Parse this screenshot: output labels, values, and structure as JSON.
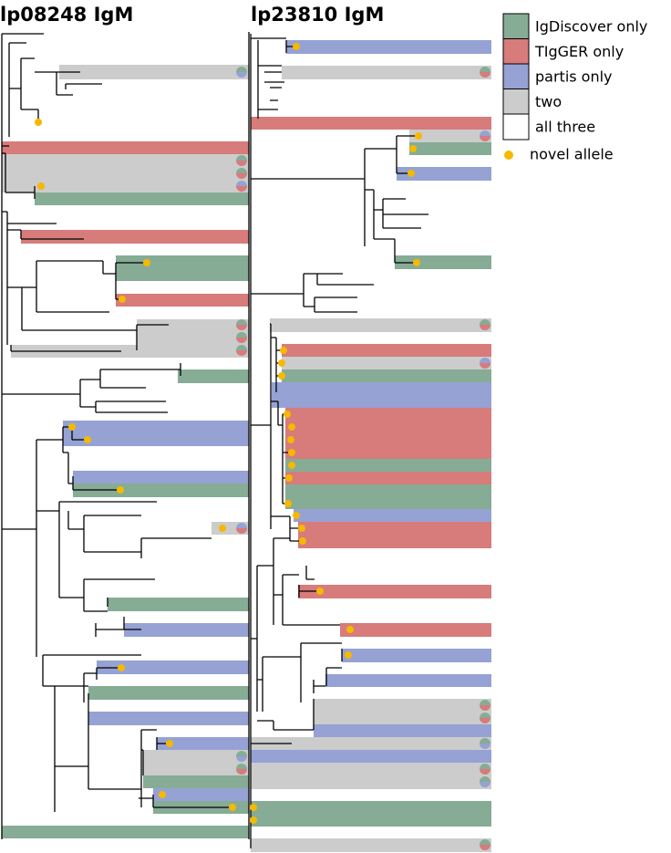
{
  "titles": [
    "lp08248 IgM",
    "lp23810 IgM"
  ],
  "legend": [
    {
      "label": "IgDiscover only",
      "color": "#86ac95"
    },
    {
      "label": "TIgGER only",
      "color": "#d77b7b"
    },
    {
      "label": "partis only",
      "color": "#95a2d3"
    },
    {
      "label": "two",
      "color": "#cccccc"
    },
    {
      "label": "all three",
      "color": "#ffffff"
    },
    {
      "label": "novel allele",
      "color": "#f6b800"
    }
  ]
}
